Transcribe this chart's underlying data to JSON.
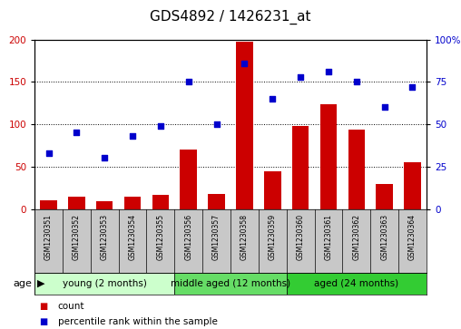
{
  "title": "GDS4892 / 1426231_at",
  "samples": [
    "GSM1230351",
    "GSM1230352",
    "GSM1230353",
    "GSM1230354",
    "GSM1230355",
    "GSM1230356",
    "GSM1230357",
    "GSM1230358",
    "GSM1230359",
    "GSM1230360",
    "GSM1230361",
    "GSM1230362",
    "GSM1230363",
    "GSM1230364"
  ],
  "counts": [
    10,
    14,
    9,
    14,
    17,
    70,
    18,
    197,
    44,
    98,
    124,
    94,
    29,
    55
  ],
  "percentiles": [
    33,
    45,
    30,
    43,
    49,
    75,
    50,
    86,
    65,
    78,
    81,
    75,
    60,
    72
  ],
  "ylim_left": [
    0,
    200
  ],
  "ylim_right": [
    0,
    100
  ],
  "yticks_left": [
    0,
    50,
    100,
    150,
    200
  ],
  "yticks_right": [
    0,
    25,
    50,
    75,
    100
  ],
  "ytick_labels_right": [
    "0",
    "25",
    "50",
    "75",
    "100%"
  ],
  "bar_color": "#CC0000",
  "dot_color": "#0000CC",
  "groups": [
    {
      "label": "young (2 months)",
      "start": 0,
      "end": 5,
      "color": "#CCFFCC"
    },
    {
      "label": "middle aged (12 months)",
      "start": 5,
      "end": 9,
      "color": "#66DD66"
    },
    {
      "label": "aged (24 months)",
      "start": 9,
      "end": 14,
      "color": "#33CC33"
    }
  ],
  "legend_items": [
    {
      "label": "count",
      "color": "#CC0000"
    },
    {
      "label": "percentile rank within the sample",
      "color": "#0000CC"
    }
  ],
  "background_color": "#FFFFFF",
  "plot_bg_color": "#FFFFFF",
  "sample_box_color": "#C8C8C8",
  "title_fontsize": 11,
  "tick_fontsize": 7.5,
  "sample_fontsize": 5.5,
  "group_fontsize": 7.5,
  "legend_fontsize": 7.5
}
